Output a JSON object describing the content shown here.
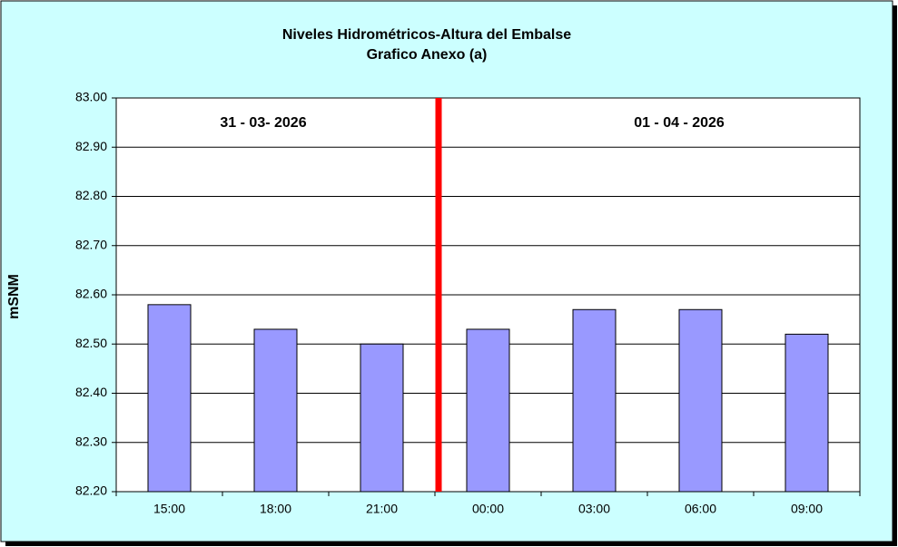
{
  "chart_data": {
    "type": "bar",
    "title": "Niveles Hidrométricos-Altura del Embalse",
    "subtitle": "Grafico Anexo (a)",
    "y_label": "mSNM",
    "annotations": [
      "31 - 03- 2026",
      "01 - 04 - 2026"
    ],
    "categories": [
      "15:00",
      "18:00",
      "21:00",
      "00:00",
      "03:00",
      "06:00",
      "09:00"
    ],
    "values": [
      82.58,
      82.53,
      82.5,
      82.53,
      82.57,
      82.57,
      82.52
    ],
    "color": "#9999ff",
    "ylim": [
      82.2,
      83.0
    ],
    "yticks": [
      {
        "value": 82.2,
        "label": "82.20"
      },
      {
        "value": 82.3,
        "label": "82.30"
      },
      {
        "value": 82.4,
        "label": "82.40"
      },
      {
        "value": 82.5,
        "label": "82.50"
      },
      {
        "value": 82.6,
        "label": "82.60"
      },
      {
        "value": 82.7,
        "label": "82.70"
      },
      {
        "value": 82.8,
        "label": "82.80"
      },
      {
        "value": 82.9,
        "label": "82.90"
      },
      {
        "value": 83.0,
        "label": "83.00"
      }
    ],
    "grid": true
  }
}
